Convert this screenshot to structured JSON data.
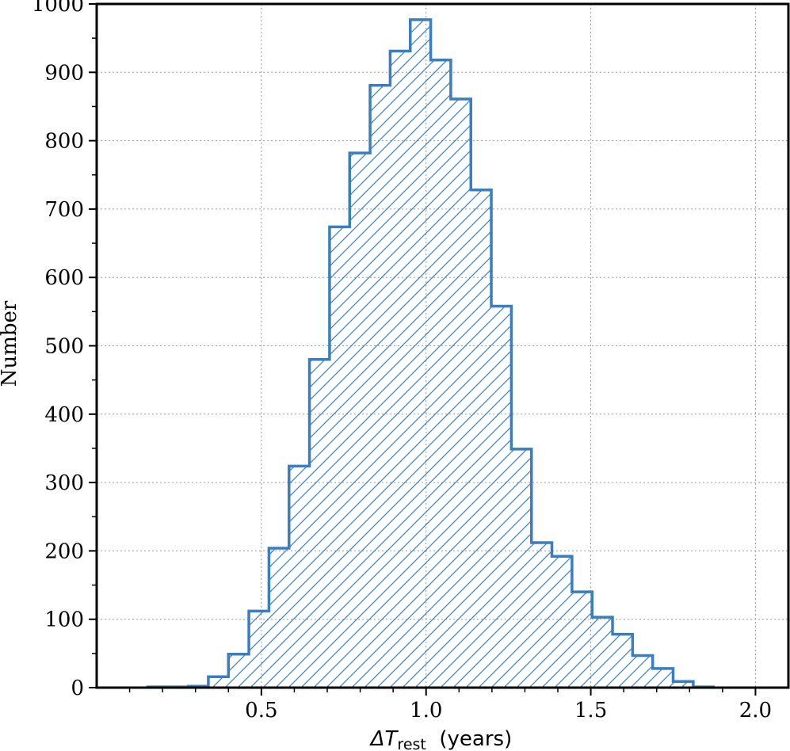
{
  "chart_data": {
    "type": "histogram",
    "title": "",
    "xlabel": "ΔT",
    "xlabel_sub": "rest",
    "xlabel_units": "(years)",
    "ylabel": "Number",
    "xlim": [
      0.0,
      2.1
    ],
    "ylim": [
      0,
      1000
    ],
    "x_ticks": [
      0.5,
      1.0,
      1.5,
      2.0
    ],
    "x_tick_labels": [
      "0.5",
      "1.0",
      "1.5",
      "2.0"
    ],
    "y_ticks": [
      0,
      100,
      200,
      300,
      400,
      500,
      600,
      700,
      800,
      900,
      1000
    ],
    "y_tick_labels": [
      "0",
      "100",
      "200",
      "300",
      "400",
      "500",
      "600",
      "700",
      "800",
      "900",
      "1000"
    ],
    "grid": true,
    "hatch": "diagonal",
    "color": "#3a7ebf",
    "bins": [
      {
        "x0": 0.155,
        "x1": 0.216,
        "count": 1
      },
      {
        "x0": 0.216,
        "x1": 0.278,
        "count": 1
      },
      {
        "x0": 0.278,
        "x1": 0.339,
        "count": 2
      },
      {
        "x0": 0.339,
        "x1": 0.4,
        "count": 16
      },
      {
        "x0": 0.4,
        "x1": 0.462,
        "count": 49
      },
      {
        "x0": 0.462,
        "x1": 0.523,
        "count": 112
      },
      {
        "x0": 0.523,
        "x1": 0.584,
        "count": 204
      },
      {
        "x0": 0.584,
        "x1": 0.646,
        "count": 324
      },
      {
        "x0": 0.646,
        "x1": 0.707,
        "count": 480
      },
      {
        "x0": 0.707,
        "x1": 0.768,
        "count": 674
      },
      {
        "x0": 0.768,
        "x1": 0.83,
        "count": 782
      },
      {
        "x0": 0.83,
        "x1": 0.891,
        "count": 881
      },
      {
        "x0": 0.891,
        "x1": 0.952,
        "count": 931
      },
      {
        "x0": 0.952,
        "x1": 1.014,
        "count": 977
      },
      {
        "x0": 1.014,
        "x1": 1.075,
        "count": 918
      },
      {
        "x0": 1.075,
        "x1": 1.136,
        "count": 861
      },
      {
        "x0": 1.136,
        "x1": 1.198,
        "count": 728
      },
      {
        "x0": 1.198,
        "x1": 1.259,
        "count": 558
      },
      {
        "x0": 1.259,
        "x1": 1.32,
        "count": 349
      },
      {
        "x0": 1.32,
        "x1": 1.382,
        "count": 212
      },
      {
        "x0": 1.382,
        "x1": 1.443,
        "count": 192
      },
      {
        "x0": 1.443,
        "x1": 1.504,
        "count": 140
      },
      {
        "x0": 1.504,
        "x1": 1.566,
        "count": 103
      },
      {
        "x0": 1.566,
        "x1": 1.627,
        "count": 78
      },
      {
        "x0": 1.627,
        "x1": 1.688,
        "count": 47
      },
      {
        "x0": 1.688,
        "x1": 1.75,
        "count": 28
      },
      {
        "x0": 1.75,
        "x1": 1.811,
        "count": 9
      },
      {
        "x0": 1.811,
        "x1": 1.872,
        "count": 1
      }
    ]
  }
}
